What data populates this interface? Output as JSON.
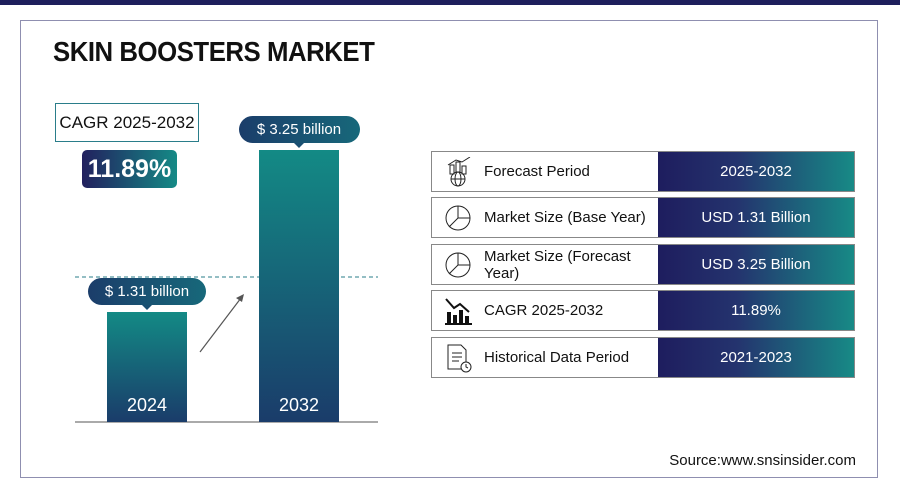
{
  "title": "SKIN BOOSTERS MARKET",
  "cagr": {
    "label": "CAGR 2025-2032",
    "value": "11.89%"
  },
  "chart_data": {
    "type": "bar",
    "categories": [
      "2024",
      "2032"
    ],
    "values": [
      1.31,
      3.25
    ],
    "data_labels": [
      "$ 1.31 billion",
      "$ 3.25 billion"
    ],
    "unit": "USD billion",
    "colors": [
      "#138a85",
      "#1a3c6a"
    ]
  },
  "table": [
    {
      "icon": "forecast-chart-globe-icon",
      "label": "Forecast Period",
      "value": "2025-2032"
    },
    {
      "icon": "pie-chart-icon",
      "label": "Market Size (Base Year)",
      "value": "USD 1.31 Billion"
    },
    {
      "icon": "pie-chart-icon",
      "label": "Market Size (Forecast Year)",
      "value": "USD 3.25 Billion"
    },
    {
      "icon": "bar-chart-decline-icon",
      "label": "CAGR 2025-2032",
      "value": "11.89%"
    },
    {
      "icon": "document-clock-icon",
      "label": "Historical Data Period",
      "value": "2021-2023"
    }
  ],
  "source": "Source:www.snsinsider.com"
}
